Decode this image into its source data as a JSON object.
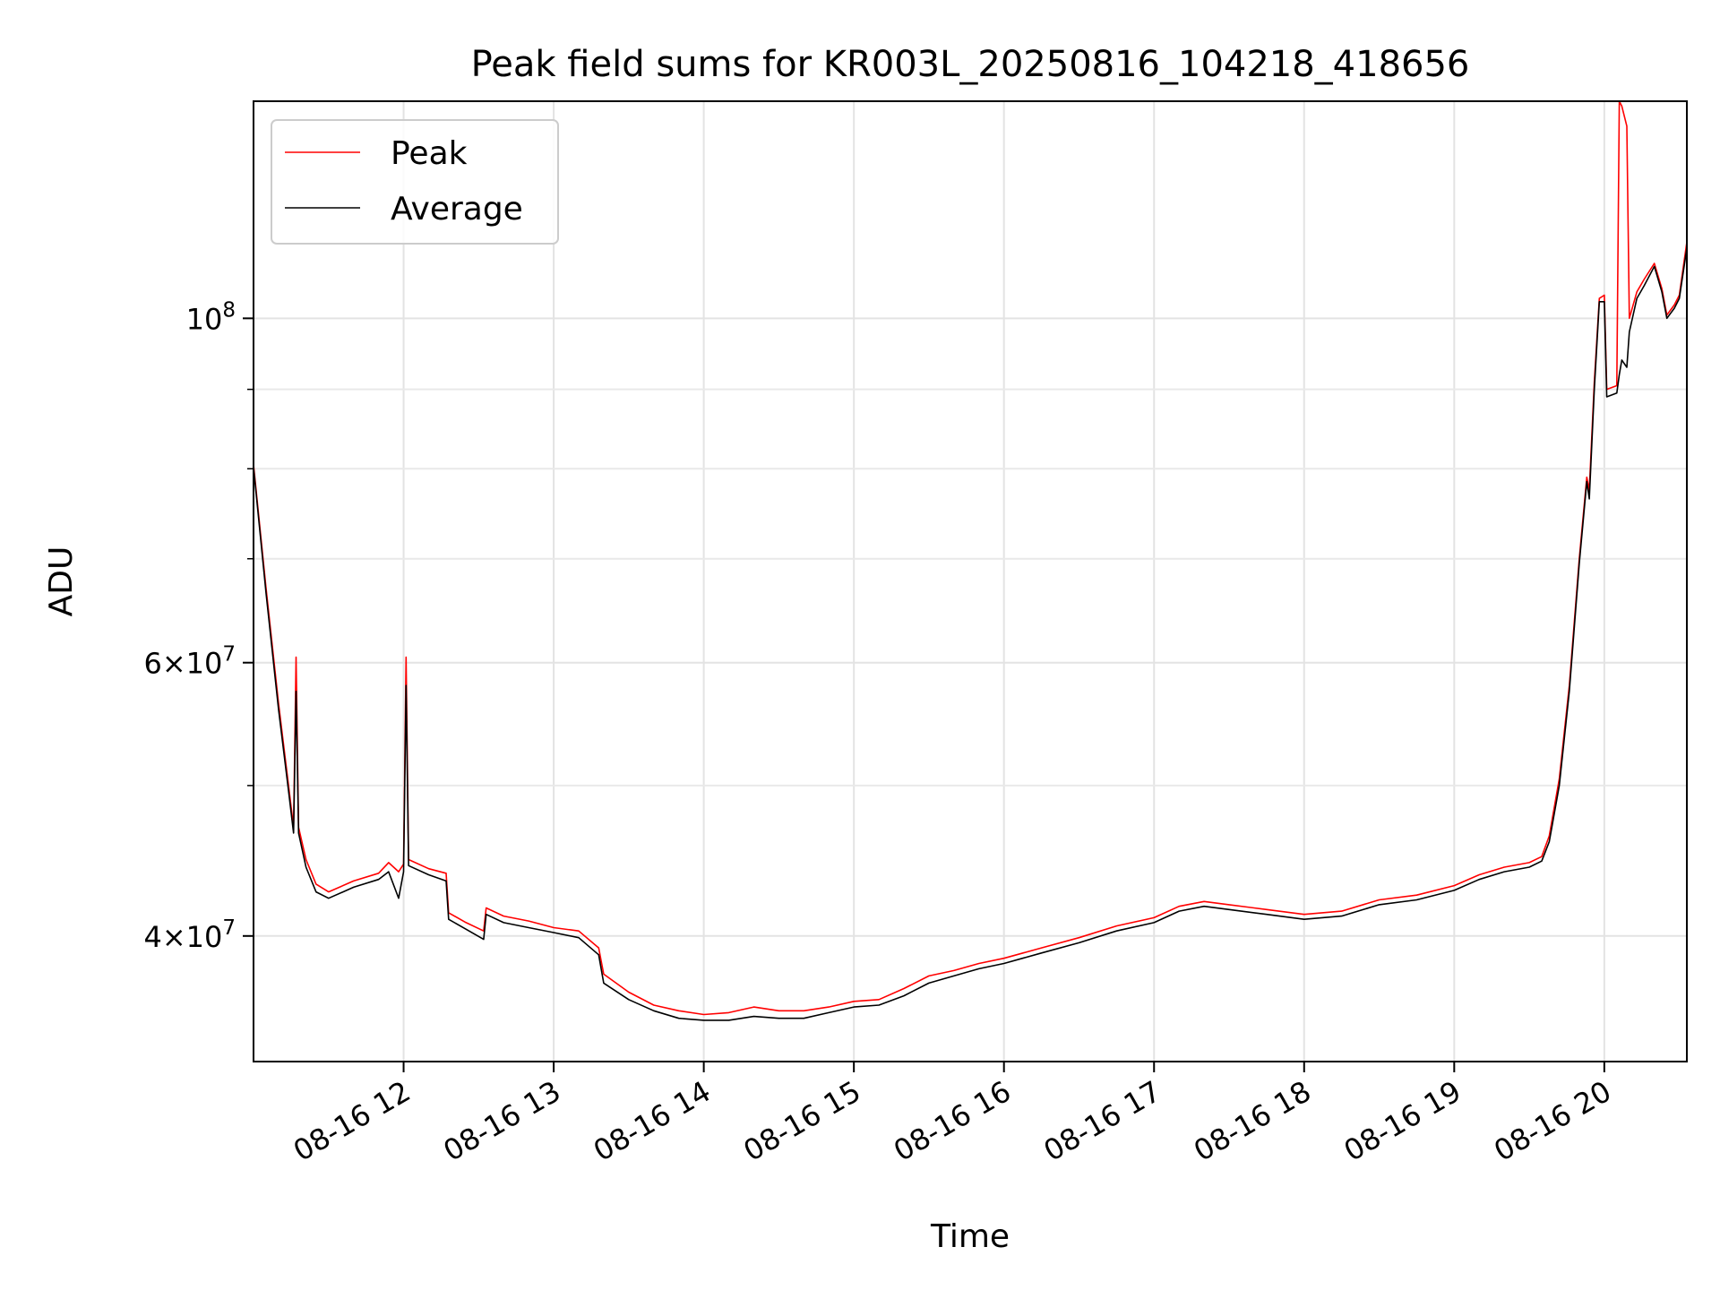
{
  "chart_data": {
    "type": "line",
    "title": "Peak field sums for KR003L_20250816_104218_418656",
    "xlabel": "Time",
    "ylabel": "ADU",
    "yscale": "log",
    "grid": true,
    "legend_placement": "upper-left",
    "xlim": [
      "2025-08-16 11:00",
      "2025-08-16 20:33"
    ],
    "ylim": [
      33200000,
      138000000
    ],
    "x_ticks": [
      {
        "t": "2025-08-16 12:00",
        "label": "08-16 12"
      },
      {
        "t": "2025-08-16 13:00",
        "label": "08-16 13"
      },
      {
        "t": "2025-08-16 14:00",
        "label": "08-16 14"
      },
      {
        "t": "2025-08-16 15:00",
        "label": "08-16 15"
      },
      {
        "t": "2025-08-16 16:00",
        "label": "08-16 16"
      },
      {
        "t": "2025-08-16 17:00",
        "label": "08-16 17"
      },
      {
        "t": "2025-08-16 18:00",
        "label": "08-16 18"
      },
      {
        "t": "2025-08-16 19:00",
        "label": "08-16 19"
      },
      {
        "t": "2025-08-16 20:00",
        "label": "08-16 20"
      }
    ],
    "y_major_ticks": [
      {
        "value": 40000000,
        "mantissa": "4",
        "base": "10",
        "exponent": "7"
      },
      {
        "value": 60000000,
        "mantissa": "6",
        "base": "10",
        "exponent": "7"
      },
      {
        "value": 100000000,
        "mantissa": "",
        "base": "10",
        "exponent": "8"
      }
    ],
    "y_minor_ticks": [
      50000000,
      70000000,
      80000000,
      90000000
    ],
    "series": [
      {
        "name": "Peak",
        "color": "#ff0000",
        "points": [
          [
            "2025-08-16 11:00",
            80500000
          ],
          [
            "2025-08-16 11:05",
            67000000
          ],
          [
            "2025-08-16 11:10",
            56500000
          ],
          [
            "2025-08-16 11:14",
            50000000
          ],
          [
            "2025-08-16 11:16",
            47000000
          ],
          [
            "2025-08-16 11:17",
            60500000
          ],
          [
            "2025-08-16 11:18",
            47000000
          ],
          [
            "2025-08-16 11:21",
            44800000
          ],
          [
            "2025-08-16 11:25",
            43200000
          ],
          [
            "2025-08-16 11:30",
            42700000
          ],
          [
            "2025-08-16 11:40",
            43400000
          ],
          [
            "2025-08-16 11:50",
            43900000
          ],
          [
            "2025-08-16 11:54",
            44600000
          ],
          [
            "2025-08-16 11:58",
            44000000
          ],
          [
            "2025-08-16 12:00",
            44500000
          ],
          [
            "2025-08-16 12:01",
            60500000
          ],
          [
            "2025-08-16 12:02",
            44800000
          ],
          [
            "2025-08-16 12:10",
            44200000
          ],
          [
            "2025-08-16 12:17",
            43900000
          ],
          [
            "2025-08-16 12:18",
            41400000
          ],
          [
            "2025-08-16 12:25",
            40800000
          ],
          [
            "2025-08-16 12:32",
            40300000
          ],
          [
            "2025-08-16 12:33",
            41700000
          ],
          [
            "2025-08-16 12:40",
            41200000
          ],
          [
            "2025-08-16 12:50",
            40900000
          ],
          [
            "2025-08-16 13:00",
            40500000
          ],
          [
            "2025-08-16 13:10",
            40300000
          ],
          [
            "2025-08-16 13:18",
            39300000
          ],
          [
            "2025-08-16 13:20",
            37800000
          ],
          [
            "2025-08-16 13:30",
            36800000
          ],
          [
            "2025-08-16 13:40",
            36100000
          ],
          [
            "2025-08-16 13:50",
            35800000
          ],
          [
            "2025-08-16 14:00",
            35600000
          ],
          [
            "2025-08-16 14:10",
            35700000
          ],
          [
            "2025-08-16 14:20",
            36000000
          ],
          [
            "2025-08-16 14:30",
            35800000
          ],
          [
            "2025-08-16 14:40",
            35800000
          ],
          [
            "2025-08-16 14:50",
            36000000
          ],
          [
            "2025-08-16 15:00",
            36300000
          ],
          [
            "2025-08-16 15:10",
            36400000
          ],
          [
            "2025-08-16 15:20",
            37000000
          ],
          [
            "2025-08-16 15:30",
            37700000
          ],
          [
            "2025-08-16 15:40",
            38000000
          ],
          [
            "2025-08-16 15:50",
            38400000
          ],
          [
            "2025-08-16 16:00",
            38700000
          ],
          [
            "2025-08-16 16:15",
            39300000
          ],
          [
            "2025-08-16 16:30",
            39900000
          ],
          [
            "2025-08-16 16:45",
            40600000
          ],
          [
            "2025-08-16 17:00",
            41100000
          ],
          [
            "2025-08-16 17:10",
            41800000
          ],
          [
            "2025-08-16 17:20",
            42100000
          ],
          [
            "2025-08-16 17:30",
            41900000
          ],
          [
            "2025-08-16 17:45",
            41600000
          ],
          [
            "2025-08-16 18:00",
            41300000
          ],
          [
            "2025-08-16 18:15",
            41500000
          ],
          [
            "2025-08-16 18:30",
            42200000
          ],
          [
            "2025-08-16 18:45",
            42500000
          ],
          [
            "2025-08-16 19:00",
            43100000
          ],
          [
            "2025-08-16 19:10",
            43800000
          ],
          [
            "2025-08-16 19:20",
            44300000
          ],
          [
            "2025-08-16 19:30",
            44600000
          ],
          [
            "2025-08-16 19:35",
            45000000
          ],
          [
            "2025-08-16 19:38",
            46400000
          ],
          [
            "2025-08-16 19:42",
            50500000
          ],
          [
            "2025-08-16 19:46",
            58000000
          ],
          [
            "2025-08-16 19:50",
            70000000
          ],
          [
            "2025-08-16 19:53",
            79000000
          ],
          [
            "2025-08-16 19:54",
            77500000
          ],
          [
            "2025-08-16 19:56",
            91000000
          ],
          [
            "2025-08-16 19:58",
            103000000
          ],
          [
            "2025-08-16 20:00",
            103500000
          ],
          [
            "2025-08-16 20:01",
            90000000
          ],
          [
            "2025-08-16 20:05",
            90500000
          ],
          [
            "2025-08-16 20:06",
            138000000
          ],
          [
            "2025-08-16 20:07",
            137000000
          ],
          [
            "2025-08-16 20:09",
            133000000
          ],
          [
            "2025-08-16 20:10",
            100000000
          ],
          [
            "2025-08-16 20:13",
            104000000
          ],
          [
            "2025-08-16 20:16",
            106000000
          ],
          [
            "2025-08-16 20:20",
            108500000
          ],
          [
            "2025-08-16 20:23",
            104500000
          ],
          [
            "2025-08-16 20:25",
            100500000
          ],
          [
            "2025-08-16 20:28",
            102000000
          ],
          [
            "2025-08-16 20:30",
            103500000
          ],
          [
            "2025-08-16 20:33",
            112000000
          ]
        ]
      },
      {
        "name": "Average",
        "color": "#000000",
        "points": [
          [
            "2025-08-16 11:00",
            80200000
          ],
          [
            "2025-08-16 11:05",
            66500000
          ],
          [
            "2025-08-16 11:10",
            56000000
          ],
          [
            "2025-08-16 11:14",
            49600000
          ],
          [
            "2025-08-16 11:16",
            46600000
          ],
          [
            "2025-08-16 11:17",
            57500000
          ],
          [
            "2025-08-16 11:18",
            46600000
          ],
          [
            "2025-08-16 11:21",
            44300000
          ],
          [
            "2025-08-16 11:25",
            42700000
          ],
          [
            "2025-08-16 11:30",
            42300000
          ],
          [
            "2025-08-16 11:40",
            43000000
          ],
          [
            "2025-08-16 11:50",
            43500000
          ],
          [
            "2025-08-16 11:54",
            44000000
          ],
          [
            "2025-08-16 11:58",
            42300000
          ],
          [
            "2025-08-16 12:00",
            44000000
          ],
          [
            "2025-08-16 12:01",
            58000000
          ],
          [
            "2025-08-16 12:02",
            44400000
          ],
          [
            "2025-08-16 12:10",
            43800000
          ],
          [
            "2025-08-16 12:17",
            43400000
          ],
          [
            "2025-08-16 12:18",
            41000000
          ],
          [
            "2025-08-16 12:25",
            40400000
          ],
          [
            "2025-08-16 12:32",
            39800000
          ],
          [
            "2025-08-16 12:33",
            41300000
          ],
          [
            "2025-08-16 12:40",
            40800000
          ],
          [
            "2025-08-16 12:50",
            40500000
          ],
          [
            "2025-08-16 13:00",
            40200000
          ],
          [
            "2025-08-16 13:10",
            39900000
          ],
          [
            "2025-08-16 13:18",
            38900000
          ],
          [
            "2025-08-16 13:20",
            37300000
          ],
          [
            "2025-08-16 13:30",
            36400000
          ],
          [
            "2025-08-16 13:40",
            35800000
          ],
          [
            "2025-08-16 13:50",
            35400000
          ],
          [
            "2025-08-16 14:00",
            35300000
          ],
          [
            "2025-08-16 14:10",
            35300000
          ],
          [
            "2025-08-16 14:20",
            35500000
          ],
          [
            "2025-08-16 14:30",
            35400000
          ],
          [
            "2025-08-16 14:40",
            35400000
          ],
          [
            "2025-08-16 14:50",
            35700000
          ],
          [
            "2025-08-16 15:00",
            36000000
          ],
          [
            "2025-08-16 15:10",
            36100000
          ],
          [
            "2025-08-16 15:20",
            36600000
          ],
          [
            "2025-08-16 15:30",
            37300000
          ],
          [
            "2025-08-16 15:40",
            37700000
          ],
          [
            "2025-08-16 15:50",
            38100000
          ],
          [
            "2025-08-16 16:00",
            38400000
          ],
          [
            "2025-08-16 16:15",
            39000000
          ],
          [
            "2025-08-16 16:30",
            39600000
          ],
          [
            "2025-08-16 16:45",
            40300000
          ],
          [
            "2025-08-16 17:00",
            40800000
          ],
          [
            "2025-08-16 17:10",
            41500000
          ],
          [
            "2025-08-16 17:20",
            41800000
          ],
          [
            "2025-08-16 17:30",
            41600000
          ],
          [
            "2025-08-16 17:45",
            41300000
          ],
          [
            "2025-08-16 18:00",
            41000000
          ],
          [
            "2025-08-16 18:15",
            41200000
          ],
          [
            "2025-08-16 18:30",
            41900000
          ],
          [
            "2025-08-16 18:45",
            42200000
          ],
          [
            "2025-08-16 19:00",
            42800000
          ],
          [
            "2025-08-16 19:10",
            43500000
          ],
          [
            "2025-08-16 19:20",
            44000000
          ],
          [
            "2025-08-16 19:30",
            44300000
          ],
          [
            "2025-08-16 19:35",
            44700000
          ],
          [
            "2025-08-16 19:38",
            46000000
          ],
          [
            "2025-08-16 19:42",
            50000000
          ],
          [
            "2025-08-16 19:46",
            57500000
          ],
          [
            "2025-08-16 19:50",
            69500000
          ],
          [
            "2025-08-16 19:53",
            78500000
          ],
          [
            "2025-08-16 19:54",
            76500000
          ],
          [
            "2025-08-16 19:56",
            90000000
          ],
          [
            "2025-08-16 19:58",
            102500000
          ],
          [
            "2025-08-16 20:00",
            102500000
          ],
          [
            "2025-08-16 20:01",
            89000000
          ],
          [
            "2025-08-16 20:05",
            89500000
          ],
          [
            "2025-08-16 20:06",
            92000000
          ],
          [
            "2025-08-16 20:07",
            94000000
          ],
          [
            "2025-08-16 20:09",
            93000000
          ],
          [
            "2025-08-16 20:10",
            98000000
          ],
          [
            "2025-08-16 20:13",
            103000000
          ],
          [
            "2025-08-16 20:16",
            105000000
          ],
          [
            "2025-08-16 20:20",
            108000000
          ],
          [
            "2025-08-16 20:23",
            104000000
          ],
          [
            "2025-08-16 20:25",
            100000000
          ],
          [
            "2025-08-16 20:28",
            101500000
          ],
          [
            "2025-08-16 20:30",
            103000000
          ],
          [
            "2025-08-16 20:33",
            111000000
          ]
        ]
      }
    ]
  }
}
